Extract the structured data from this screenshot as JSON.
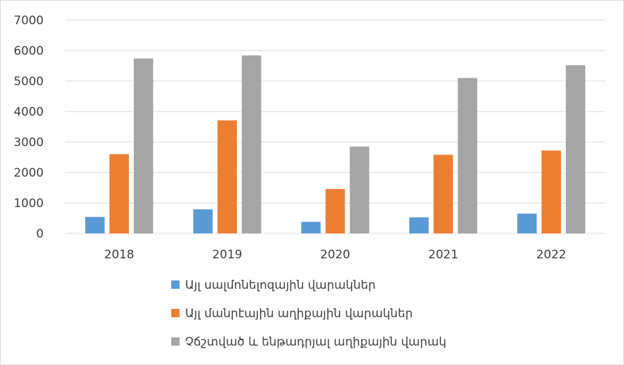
{
  "chart_data": {
    "type": "bar",
    "title": "",
    "xlabel": "",
    "ylabel": "",
    "categories": [
      "2018",
      "2019",
      "2020",
      "2021",
      "2022"
    ],
    "ylim": [
      0,
      7000
    ],
    "yticks": [
      0,
      1000,
      2000,
      3000,
      4000,
      5000,
      6000,
      7000
    ],
    "grid": true,
    "legend_position": "bottom",
    "series": [
      {
        "name": "Այլ սալմոնելոզային վարակներ",
        "color": "#5b9bd5",
        "values": [
          540,
          790,
          380,
          530,
          650
        ]
      },
      {
        "name": "Այլ մանրէային աղիքային վարակներ",
        "color": "#ed7d31",
        "values": [
          2600,
          3710,
          1460,
          2580,
          2720
        ]
      },
      {
        "name": "Չճշտված և ենթադրյալ աղիքային վարակ",
        "color": "#a5a5a5",
        "values": [
          5740,
          5840,
          2850,
          5100,
          5520
        ]
      }
    ]
  }
}
